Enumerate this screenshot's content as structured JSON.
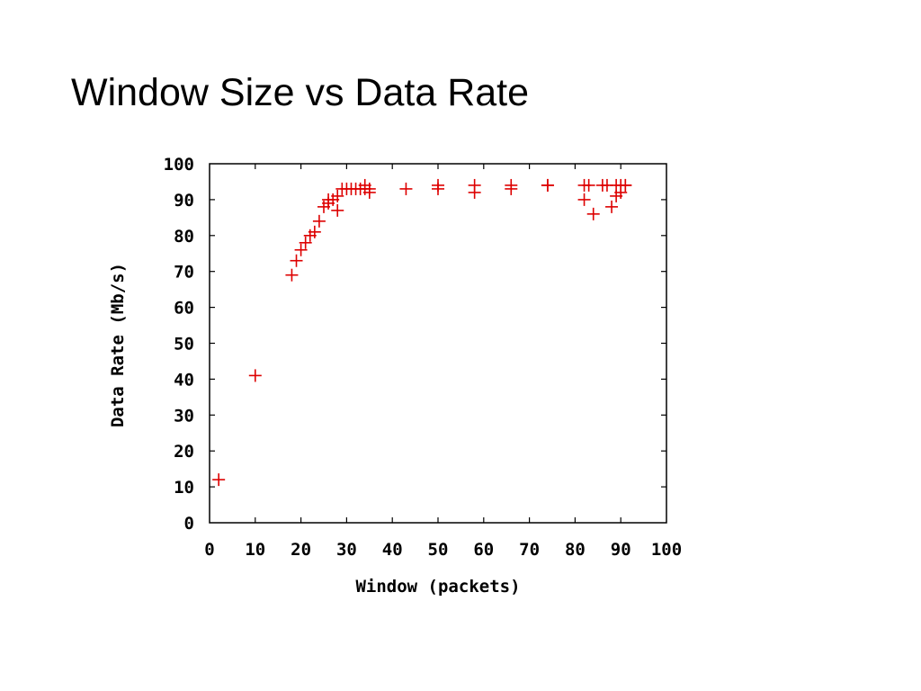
{
  "slide": {
    "title": "Window Size vs Data Rate"
  },
  "chart_data": {
    "type": "scatter",
    "title": "Window Size vs Data Rate",
    "xlabel": "Window (packets)",
    "ylabel": "Data Rate (Mb/s)",
    "xlim": [
      0,
      100
    ],
    "ylim": [
      0,
      100
    ],
    "xticks": [
      0,
      10,
      20,
      30,
      40,
      50,
      60,
      70,
      80,
      90,
      100
    ],
    "yticks": [
      0,
      10,
      20,
      30,
      40,
      50,
      60,
      70,
      80,
      90,
      100
    ],
    "grid": false,
    "legend": "none",
    "marker": "plus",
    "color": "#dd0000",
    "series": [
      {
        "x": [
          2,
          10,
          18,
          19,
          20,
          21,
          22,
          23,
          24,
          25,
          26,
          26,
          27,
          28,
          28,
          29,
          30,
          31,
          32,
          33,
          34,
          34,
          35,
          35,
          43,
          50,
          50,
          58,
          58,
          66,
          66,
          74,
          74,
          82,
          82,
          83,
          84,
          86,
          87,
          88,
          89,
          89,
          90,
          90,
          91,
          91
        ],
        "y": [
          12,
          41,
          69,
          73,
          76,
          78,
          80,
          81,
          84,
          88,
          90,
          89,
          90,
          87,
          91,
          93,
          93,
          93,
          93,
          93,
          94,
          93,
          92,
          93,
          93,
          94,
          93,
          94,
          92,
          94,
          93,
          94,
          94,
          90,
          94,
          94,
          86,
          94,
          94,
          88,
          91,
          94,
          92,
          94,
          94,
          94
        ]
      }
    ]
  }
}
